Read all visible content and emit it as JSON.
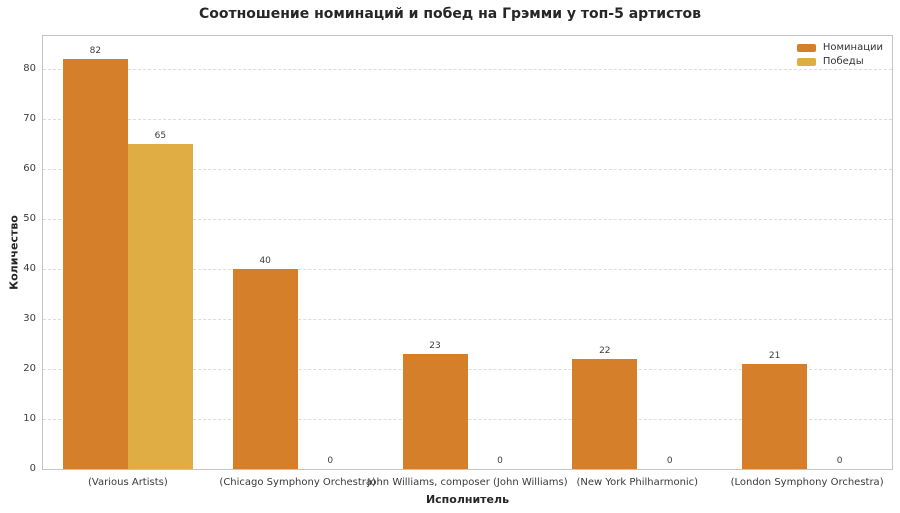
{
  "chart_data": {
    "type": "bar",
    "title": "Соотношение номинаций и побед на Грэмми у топ-5 артистов",
    "xlabel": "Исполнитель",
    "ylabel": "Количество",
    "categories": [
      "(Various Artists)",
      "(Chicago Symphony Orchestra)",
      "John Williams, composer (John Williams)",
      "(New York Philharmonic)",
      "(London Symphony Orchestra)"
    ],
    "series": [
      {
        "name": "Номинации",
        "color": "#d67f2b",
        "values": [
          82,
          40,
          23,
          22,
          21
        ]
      },
      {
        "name": "Победы",
        "color": "#dfad44",
        "values": [
          65,
          0,
          0,
          0,
          0
        ]
      }
    ],
    "yticks": [
      0,
      10,
      20,
      30,
      40,
      50,
      60,
      70,
      80
    ],
    "ylim": [
      0,
      86.5
    ],
    "grid": "horizontal-dashed",
    "legend_position": "top-right",
    "bar_value_labels": true
  }
}
